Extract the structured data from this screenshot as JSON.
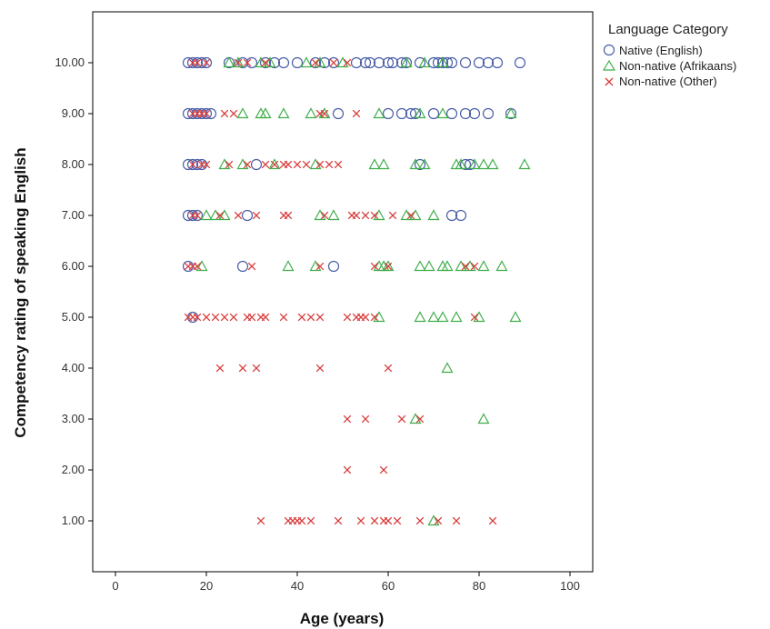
{
  "chart_data": {
    "type": "scatter",
    "xlabel": "Age (years)",
    "ylabel": "Competency rating of speaking English",
    "xlim": [
      -5,
      105
    ],
    "ylim": [
      0,
      11
    ],
    "x_ticks": [
      0,
      20,
      40,
      60,
      80,
      100
    ],
    "x_tick_labels": [
      "0",
      "20",
      "40",
      "60",
      "80",
      "100"
    ],
    "y_ticks": [
      1,
      2,
      3,
      4,
      5,
      6,
      7,
      8,
      9,
      10
    ],
    "y_tick_labels": [
      "1.00",
      "2.00",
      "3.00",
      "4.00",
      "5.00",
      "6.00",
      "7.00",
      "8.00",
      "9.00",
      "10.00"
    ],
    "grid": false,
    "legend": {
      "title": "Language Category",
      "position": "top-right-outside"
    },
    "series": [
      {
        "name": "Native (English)",
        "marker": "circle",
        "color": "#4a5ea8",
        "points": [
          [
            16,
            10
          ],
          [
            17,
            10
          ],
          [
            18,
            10
          ],
          [
            19,
            10
          ],
          [
            20,
            10
          ],
          [
            25,
            10
          ],
          [
            28,
            10
          ],
          [
            30,
            10
          ],
          [
            33,
            10
          ],
          [
            35,
            10
          ],
          [
            37,
            10
          ],
          [
            40,
            10
          ],
          [
            44,
            10
          ],
          [
            46,
            10
          ],
          [
            48,
            10
          ],
          [
            53,
            10
          ],
          [
            55,
            10
          ],
          [
            56,
            10
          ],
          [
            58,
            10
          ],
          [
            60,
            10
          ],
          [
            61,
            10
          ],
          [
            63,
            10
          ],
          [
            64,
            10
          ],
          [
            67,
            10
          ],
          [
            70,
            10
          ],
          [
            71,
            10
          ],
          [
            72,
            10
          ],
          [
            73,
            10
          ],
          [
            74,
            10
          ],
          [
            77,
            10
          ],
          [
            80,
            10
          ],
          [
            82,
            10
          ],
          [
            84,
            10
          ],
          [
            89,
            10
          ],
          [
            16,
            9
          ],
          [
            17,
            9
          ],
          [
            18,
            9
          ],
          [
            19,
            9
          ],
          [
            20,
            9
          ],
          [
            21,
            9
          ],
          [
            49,
            9
          ],
          [
            60,
            9
          ],
          [
            63,
            9
          ],
          [
            65,
            9
          ],
          [
            66,
            9
          ],
          [
            70,
            9
          ],
          [
            74,
            9
          ],
          [
            77,
            9
          ],
          [
            79,
            9
          ],
          [
            82,
            9
          ],
          [
            87,
            9
          ],
          [
            16,
            8
          ],
          [
            17,
            8
          ],
          [
            18,
            8
          ],
          [
            19,
            8
          ],
          [
            31,
            8
          ],
          [
            67,
            8
          ],
          [
            77,
            8
          ],
          [
            78,
            8
          ],
          [
            16,
            7
          ],
          [
            17,
            7
          ],
          [
            18,
            7
          ],
          [
            29,
            7
          ],
          [
            74,
            7
          ],
          [
            76,
            7
          ],
          [
            16,
            6
          ],
          [
            28,
            6
          ],
          [
            48,
            6
          ],
          [
            17,
            5
          ]
        ]
      },
      {
        "name": "Non-native (Afrikaans)",
        "marker": "triangle",
        "color": "#3fae49",
        "points": [
          [
            25,
            10
          ],
          [
            27,
            10
          ],
          [
            32,
            10
          ],
          [
            34,
            10
          ],
          [
            42,
            10
          ],
          [
            45,
            10
          ],
          [
            50,
            10
          ],
          [
            64,
            10
          ],
          [
            68,
            10
          ],
          [
            72,
            10
          ],
          [
            28,
            9
          ],
          [
            32,
            9
          ],
          [
            33,
            9
          ],
          [
            37,
            9
          ],
          [
            43,
            9
          ],
          [
            46,
            9
          ],
          [
            58,
            9
          ],
          [
            67,
            9
          ],
          [
            72,
            9
          ],
          [
            87,
            9
          ],
          [
            24,
            8
          ],
          [
            28,
            8
          ],
          [
            35,
            8
          ],
          [
            44,
            8
          ],
          [
            57,
            8
          ],
          [
            59,
            8
          ],
          [
            66,
            8
          ],
          [
            68,
            8
          ],
          [
            75,
            8
          ],
          [
            76,
            8
          ],
          [
            79,
            8
          ],
          [
            81,
            8
          ],
          [
            83,
            8
          ],
          [
            90,
            8
          ],
          [
            20,
            7
          ],
          [
            22,
            7
          ],
          [
            24,
            7
          ],
          [
            45,
            7
          ],
          [
            48,
            7
          ],
          [
            58,
            7
          ],
          [
            64,
            7
          ],
          [
            66,
            7
          ],
          [
            70,
            7
          ],
          [
            19,
            6
          ],
          [
            38,
            6
          ],
          [
            44,
            6
          ],
          [
            58,
            6
          ],
          [
            59,
            6
          ],
          [
            60,
            6
          ],
          [
            67,
            6
          ],
          [
            69,
            6
          ],
          [
            72,
            6
          ],
          [
            73,
            6
          ],
          [
            76,
            6
          ],
          [
            78,
            6
          ],
          [
            81,
            6
          ],
          [
            85,
            6
          ],
          [
            58,
            5
          ],
          [
            67,
            5
          ],
          [
            70,
            5
          ],
          [
            72,
            5
          ],
          [
            75,
            5
          ],
          [
            80,
            5
          ],
          [
            88,
            5
          ],
          [
            73,
            4
          ],
          [
            66,
            3
          ],
          [
            81,
            3
          ],
          [
            70,
            1
          ]
        ]
      },
      {
        "name": "Non-native (Other)",
        "marker": "x",
        "color": "#d93a3a",
        "points": [
          [
            17,
            10
          ],
          [
            18,
            10
          ],
          [
            20,
            10
          ],
          [
            27,
            10
          ],
          [
            29,
            10
          ],
          [
            33,
            10
          ],
          [
            44,
            10
          ],
          [
            48,
            10
          ],
          [
            51,
            10
          ],
          [
            17,
            9
          ],
          [
            18,
            9
          ],
          [
            19,
            9
          ],
          [
            20,
            9
          ],
          [
            24,
            9
          ],
          [
            26,
            9
          ],
          [
            45,
            9
          ],
          [
            46,
            9
          ],
          [
            53,
            9
          ],
          [
            17,
            8
          ],
          [
            19,
            8
          ],
          [
            20,
            8
          ],
          [
            25,
            8
          ],
          [
            29,
            8
          ],
          [
            33,
            8
          ],
          [
            35,
            8
          ],
          [
            37,
            8
          ],
          [
            38,
            8
          ],
          [
            40,
            8
          ],
          [
            42,
            8
          ],
          [
            45,
            8
          ],
          [
            47,
            8
          ],
          [
            49,
            8
          ],
          [
            17,
            7
          ],
          [
            18,
            7
          ],
          [
            23,
            7
          ],
          [
            27,
            7
          ],
          [
            31,
            7
          ],
          [
            37,
            7
          ],
          [
            38,
            7
          ],
          [
            46,
            7
          ],
          [
            52,
            7
          ],
          [
            53,
            7
          ],
          [
            55,
            7
          ],
          [
            57,
            7
          ],
          [
            61,
            7
          ],
          [
            65,
            7
          ],
          [
            16,
            6
          ],
          [
            17,
            6
          ],
          [
            18,
            6
          ],
          [
            30,
            6
          ],
          [
            45,
            6
          ],
          [
            57,
            6
          ],
          [
            60,
            6
          ],
          [
            77,
            6
          ],
          [
            79,
            6
          ],
          [
            16,
            5
          ],
          [
            17,
            5
          ],
          [
            18,
            5
          ],
          [
            20,
            5
          ],
          [
            22,
            5
          ],
          [
            24,
            5
          ],
          [
            26,
            5
          ],
          [
            29,
            5
          ],
          [
            30,
            5
          ],
          [
            32,
            5
          ],
          [
            33,
            5
          ],
          [
            37,
            5
          ],
          [
            41,
            5
          ],
          [
            43,
            5
          ],
          [
            45,
            5
          ],
          [
            51,
            5
          ],
          [
            53,
            5
          ],
          [
            54,
            5
          ],
          [
            55,
            5
          ],
          [
            57,
            5
          ],
          [
            79,
            5
          ],
          [
            23,
            4
          ],
          [
            28,
            4
          ],
          [
            31,
            4
          ],
          [
            45,
            4
          ],
          [
            60,
            4
          ],
          [
            51,
            3
          ],
          [
            55,
            3
          ],
          [
            63,
            3
          ],
          [
            67,
            3
          ],
          [
            51,
            2
          ],
          [
            59,
            2
          ],
          [
            32,
            1
          ],
          [
            38,
            1
          ],
          [
            39,
            1
          ],
          [
            40,
            1
          ],
          [
            41,
            1
          ],
          [
            43,
            1
          ],
          [
            49,
            1
          ],
          [
            54,
            1
          ],
          [
            57,
            1
          ],
          [
            59,
            1
          ],
          [
            60,
            1
          ],
          [
            62,
            1
          ],
          [
            67,
            1
          ],
          [
            71,
            1
          ],
          [
            75,
            1
          ],
          [
            83,
            1
          ]
        ]
      }
    ]
  }
}
